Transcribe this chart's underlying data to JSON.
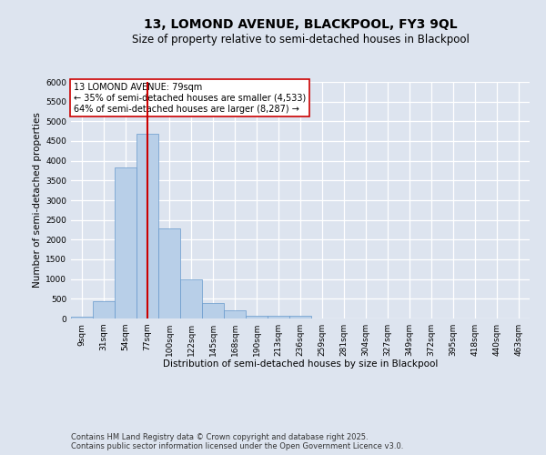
{
  "title_line1": "13, LOMOND AVENUE, BLACKPOOL, FY3 9QL",
  "title_line2": "Size of property relative to semi-detached houses in Blackpool",
  "xlabel": "Distribution of semi-detached houses by size in Blackpool",
  "ylabel": "Number of semi-detached properties",
  "footer_line1": "Contains HM Land Registry data © Crown copyright and database right 2025.",
  "footer_line2": "Contains public sector information licensed under the Open Government Licence v3.0.",
  "annotation_title": "13 LOMOND AVENUE: 79sqm",
  "annotation_line2": "← 35% of semi-detached houses are smaller (4,533)",
  "annotation_line3": "64% of semi-detached houses are larger (8,287) →",
  "bar_categories": [
    "9sqm",
    "31sqm",
    "54sqm",
    "77sqm",
    "100sqm",
    "122sqm",
    "145sqm",
    "168sqm",
    "190sqm",
    "213sqm",
    "236sqm",
    "259sqm",
    "281sqm",
    "304sqm",
    "327sqm",
    "349sqm",
    "372sqm",
    "395sqm",
    "418sqm",
    "440sqm",
    "463sqm"
  ],
  "bar_values": [
    50,
    430,
    3830,
    4680,
    2290,
    990,
    400,
    210,
    80,
    70,
    70,
    0,
    0,
    0,
    0,
    0,
    0,
    0,
    0,
    0,
    0
  ],
  "bar_color": "#b8cfe8",
  "bar_edge_color": "#6699cc",
  "vline_color": "#cc0000",
  "vline_x": 3,
  "ylim": [
    0,
    6000
  ],
  "yticks": [
    0,
    500,
    1000,
    1500,
    2000,
    2500,
    3000,
    3500,
    4000,
    4500,
    5000,
    5500,
    6000
  ],
  "background_color": "#dde4ef",
  "grid_color": "#ffffff",
  "title_fontsize": 10,
  "subtitle_fontsize": 8.5,
  "axis_label_fontsize": 7.5,
  "tick_fontsize": 6.5,
  "annotation_fontsize": 7,
  "footer_fontsize": 6
}
